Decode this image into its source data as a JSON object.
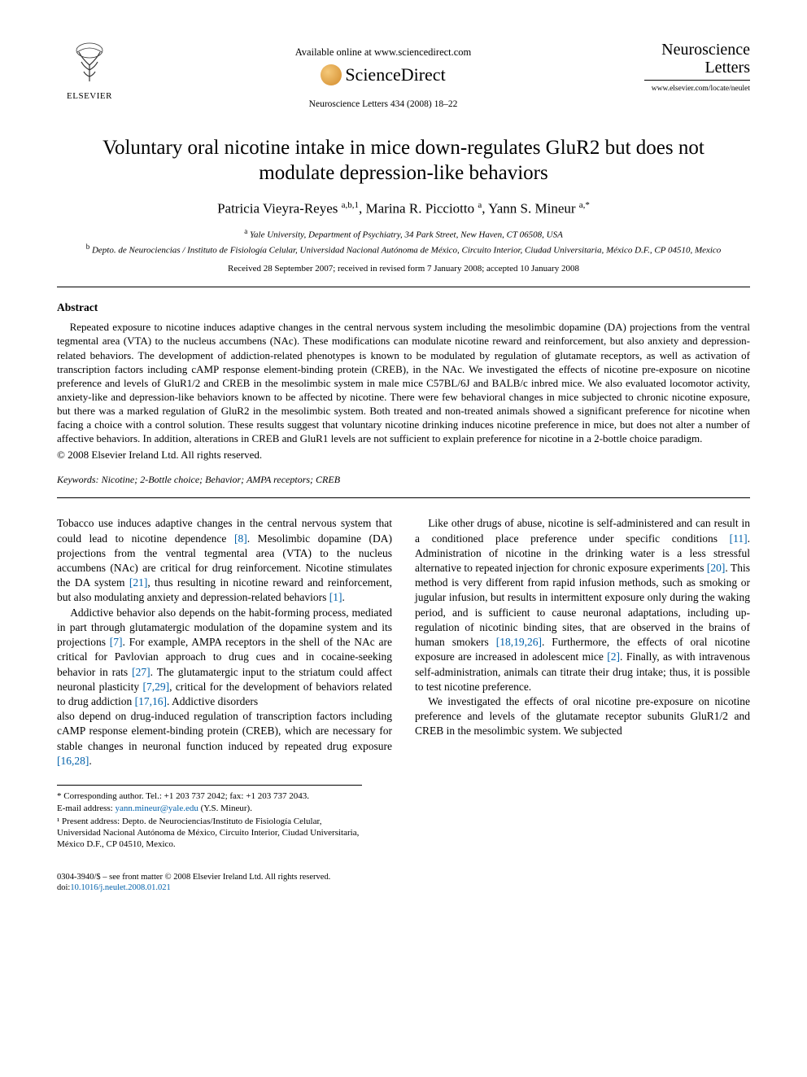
{
  "header": {
    "publisher_name": "ELSEVIER",
    "available_online": "Available online at www.sciencedirect.com",
    "platform_name": "ScienceDirect",
    "citation": "Neuroscience Letters 434 (2008) 18–22",
    "journal_title": "Neuroscience Letters",
    "journal_url": "www.elsevier.com/locate/neulet",
    "colors": {
      "orb_light": "#f5c97a",
      "orb_dark": "#d28a2a",
      "link": "#0060aa",
      "text": "#000000",
      "background": "#ffffff"
    }
  },
  "article": {
    "title": "Voluntary oral nicotine intake in mice down-regulates GluR2 but does not modulate depression-like behaviors",
    "authors_html": "Patricia Vieyra-Reyes <sup>a,b,1</sup>, Marina R. Picciotto <sup>a</sup>, Yann S. Mineur <sup>a,*</sup>",
    "affiliations": [
      {
        "marker": "a",
        "text": "Yale University, Department of Psychiatry, 34 Park Street, New Haven, CT 06508, USA"
      },
      {
        "marker": "b",
        "text": "Depto. de Neurociencias / Instituto de Fisiología Celular, Universidad Nacional Autónoma de México, Circuito Interior, Ciudad Universitaria, México D.F., CP 04510, Mexico"
      }
    ],
    "dates": "Received 28 September 2007; received in revised form 7 January 2008; accepted 10 January 2008"
  },
  "abstract": {
    "heading": "Abstract",
    "text": "Repeated exposure to nicotine induces adaptive changes in the central nervous system including the mesolimbic dopamine (DA) projections from the ventral tegmental area (VTA) to the nucleus accumbens (NAc). These modifications can modulate nicotine reward and reinforcement, but also anxiety and depression-related behaviors. The development of addiction-related phenotypes is known to be modulated by regulation of glutamate receptors, as well as activation of transcription factors including cAMP response element-binding protein (CREB), in the NAc. We investigated the effects of nicotine pre-exposure on nicotine preference and levels of GluR1/2 and CREB in the mesolimbic system in male mice C57BL/6J and BALB/c inbred mice. We also evaluated locomotor activity, anxiety-like and depression-like behaviors known to be affected by nicotine. There were few behavioral changes in mice subjected to chronic nicotine exposure, but there was a marked regulation of GluR2 in the mesolimbic system. Both treated and non-treated animals showed a significant preference for nicotine when facing a choice with a control solution. These results suggest that voluntary nicotine drinking induces nicotine preference in mice, but does not alter a number of affective behaviors. In addition, alterations in CREB and GluR1 levels are not sufficient to explain preference for nicotine in a 2-bottle choice paradigm.",
    "copyright": "© 2008 Elsevier Ireland Ltd. All rights reserved."
  },
  "keywords": {
    "label": "Keywords:",
    "list": "Nicotine; 2-Bottle choice; Behavior; AMPA receptors; CREB"
  },
  "body": {
    "p1": "Tobacco use induces adaptive changes in the central nervous system that could lead to nicotine dependence [8]. Mesolimbic dopamine (DA) projections from the ventral tegmental area (VTA) to the nucleus accumbens (NAc) are critical for drug reinforcement. Nicotine stimulates the DA system [21], thus resulting in nicotine reward and reinforcement, but also modulating anxiety and depression-related behaviors [1].",
    "p2": "Addictive behavior also depends on the habit-forming process, mediated in part through glutamatergic modulation of the dopamine system and its projections [7]. For example, AMPA receptors in the shell of the NAc are critical for Pavlovian approach to drug cues and in cocaine-seeking behavior in rats [27]. The glutamatergic input to the striatum could affect neuronal plasticity [7,29], critical for the development of behaviors related to drug addiction [17,16]. Addictive disorders",
    "p3": "also depend on drug-induced regulation of transcription factors including cAMP response element-binding protein (CREB), which are necessary for stable changes in neuronal function induced by repeated drug exposure [16,28].",
    "p4": "Like other drugs of abuse, nicotine is self-administered and can result in a conditioned place preference under specific conditions [11]. Administration of nicotine in the drinking water is a less stressful alternative to repeated injection for chronic exposure experiments [20]. This method is very different from rapid infusion methods, such as smoking or jugular infusion, but results in intermittent exposure only during the waking period, and is sufficient to cause neuronal adaptations, including up-regulation of nicotinic binding sites, that are observed in the brains of human smokers [18,19,26]. Furthermore, the effects of oral nicotine exposure are increased in adolescent mice [2]. Finally, as with intravenous self-administration, animals can titrate their drug intake; thus, it is possible to test nicotine preference.",
    "p5": "We investigated the effects of oral nicotine pre-exposure on nicotine preference and levels of the glutamate receptor subunits GluR1/2 and CREB in the mesolimbic system. We subjected"
  },
  "footnotes": {
    "corresponding": "* Corresponding author. Tel.: +1 203 737 2042; fax: +1 203 737 2043.",
    "email_label": "E-mail address:",
    "email": "yann.mineur@yale.edu",
    "email_owner": "(Y.S. Mineur).",
    "present_address": "¹ Present address: Depto. de Neurociencias/Instituto de Fisiología Celular, Universidad Nacional Autónoma de México, Circuito Interior, Ciudad Universitaria, México D.F., CP 04510, Mexico."
  },
  "footer": {
    "issn_line": "0304-3940/$ – see front matter © 2008 Elsevier Ireland Ltd. All rights reserved.",
    "doi_label": "doi:",
    "doi": "10.1016/j.neulet.2008.01.021"
  }
}
